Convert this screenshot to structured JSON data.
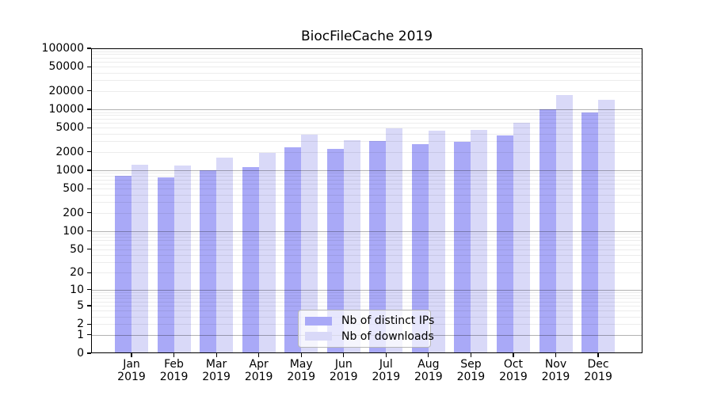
{
  "title": "BiocFileCache 2019",
  "chart_data": {
    "type": "bar",
    "title": "BiocFileCache 2019",
    "categories": [
      "Jan",
      "Feb",
      "Mar",
      "Apr",
      "May",
      "Jun",
      "Jul",
      "Aug",
      "Sep",
      "Oct",
      "Nov",
      "Dec"
    ],
    "year": "2019",
    "series": [
      {
        "name": "Nb of distinct IPs",
        "color": "#a9a9f7",
        "values": [
          805,
          757,
          1000,
          1140,
          2360,
          2230,
          3000,
          2660,
          2960,
          3730,
          9930,
          8970
        ]
      },
      {
        "name": "Nb of downloads",
        "color": "#d9d9f8",
        "values": [
          1225,
          1190,
          1600,
          1950,
          3810,
          3120,
          4940,
          4430,
          4650,
          6080,
          17180,
          14330
        ]
      }
    ],
    "yscale": "log1p",
    "ylim": [
      0,
      100000
    ],
    "yticks": [
      0,
      1,
      2,
      5,
      10,
      20,
      50,
      100,
      200,
      500,
      1000,
      2000,
      5000,
      10000,
      20000,
      50000,
      100000
    ],
    "grid": "horizontal major at powers of 10, faint minors at 2-9 multiples, drawn over bars",
    "legend_position": "inside lower center"
  },
  "legend": {
    "items": [
      {
        "label": "Nb of distinct IPs",
        "color": "#a9a9f7"
      },
      {
        "label": "Nb of downloads",
        "color": "#d9d9f8"
      }
    ]
  }
}
